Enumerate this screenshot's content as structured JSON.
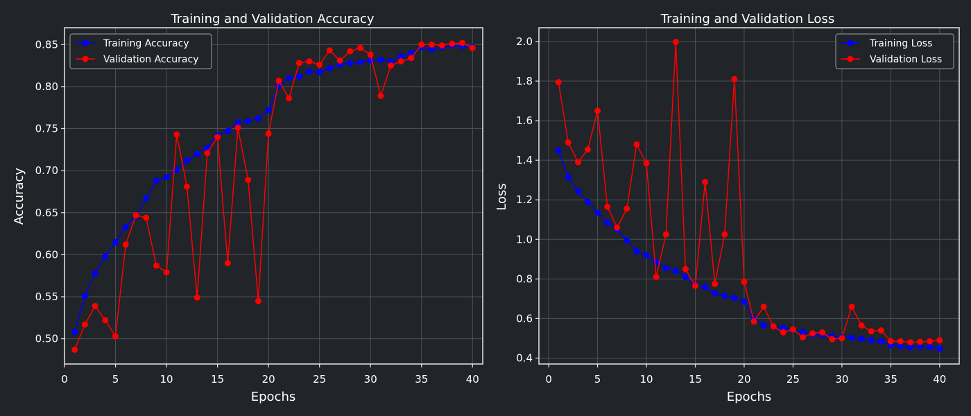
{
  "colors": {
    "background": "#212428",
    "training": "#0000ff",
    "validation": "#ff0000"
  },
  "chart_data": [
    {
      "type": "line",
      "title": "Training and Validation Accuracy",
      "xlabel": "Epochs",
      "ylabel": "Accuracy",
      "xlim": [
        0,
        41
      ],
      "ylim": [
        0.47,
        0.87
      ],
      "xticks": [
        0,
        5,
        10,
        15,
        20,
        25,
        30,
        35,
        40
      ],
      "xtick_labels": [
        "0",
        "5",
        "10",
        "15",
        "20",
        "25",
        "30",
        "35",
        "40"
      ],
      "yticks": [
        0.5,
        0.55,
        0.6,
        0.65,
        0.7,
        0.75,
        0.8,
        0.85
      ],
      "ytick_labels": [
        "0.50",
        "0.55",
        "0.60",
        "0.65",
        "0.70",
        "0.75",
        "0.80",
        "0.85"
      ],
      "grid": true,
      "legend_position": "top-left",
      "x": [
        1,
        2,
        3,
        4,
        5,
        6,
        7,
        8,
        9,
        10,
        11,
        12,
        13,
        14,
        15,
        16,
        17,
        18,
        19,
        20,
        21,
        22,
        23,
        24,
        25,
        26,
        27,
        28,
        29,
        30,
        31,
        32,
        33,
        34,
        35,
        36,
        37,
        38,
        39,
        40
      ],
      "series": [
        {
          "name": "Training Accuracy",
          "color": "#0000ff",
          "values": [
            0.508,
            0.551,
            0.578,
            0.598,
            0.615,
            0.633,
            0.646,
            0.667,
            0.688,
            0.692,
            0.701,
            0.712,
            0.72,
            0.727,
            0.742,
            0.747,
            0.757,
            0.759,
            0.762,
            0.772,
            0.801,
            0.81,
            0.812,
            0.818,
            0.817,
            0.822,
            0.826,
            0.828,
            0.829,
            0.831,
            0.832,
            0.83,
            0.836,
            0.84,
            0.847,
            0.844,
            0.847,
            0.849,
            0.848,
            0.847
          ]
        },
        {
          "name": "Validation Accuracy",
          "color": "#ff0000",
          "values": [
            0.487,
            0.517,
            0.539,
            0.522,
            0.503,
            0.612,
            0.647,
            0.644,
            0.587,
            0.579,
            0.743,
            0.681,
            0.549,
            0.721,
            0.74,
            0.59,
            0.751,
            0.689,
            0.545,
            0.744,
            0.807,
            0.786,
            0.828,
            0.83,
            0.826,
            0.843,
            0.831,
            0.842,
            0.846,
            0.838,
            0.789,
            0.825,
            0.83,
            0.834,
            0.85,
            0.85,
            0.849,
            0.851,
            0.852,
            0.846
          ]
        }
      ]
    },
    {
      "type": "line",
      "title": "Training and Validation Loss",
      "xlabel": "Epochs",
      "ylabel": "Loss",
      "xlim": [
        -1,
        42
      ],
      "ylim": [
        0.37,
        2.07
      ],
      "xticks": [
        0,
        5,
        10,
        15,
        20,
        25,
        30,
        35,
        40
      ],
      "xtick_labels": [
        "0",
        "5",
        "10",
        "15",
        "20",
        "25",
        "30",
        "35",
        "40"
      ],
      "yticks": [
        0.4,
        0.6,
        0.8,
        1.0,
        1.2,
        1.4,
        1.6,
        1.8,
        2.0
      ],
      "ytick_labels": [
        "0.4",
        "0.6",
        "0.8",
        "1.0",
        "1.2",
        "1.4",
        "1.6",
        "1.8",
        "2.0"
      ],
      "grid": true,
      "legend_position": "top-right",
      "x": [
        1,
        2,
        3,
        4,
        5,
        6,
        7,
        8,
        9,
        10,
        11,
        12,
        13,
        14,
        15,
        16,
        17,
        18,
        19,
        20,
        21,
        22,
        23,
        24,
        25,
        26,
        27,
        28,
        29,
        30,
        31,
        32,
        33,
        34,
        35,
        36,
        37,
        38,
        39,
        40
      ],
      "series": [
        {
          "name": "Training Loss",
          "color": "#0000ff",
          "values": [
            1.45,
            1.315,
            1.243,
            1.19,
            1.135,
            1.085,
            1.051,
            0.995,
            0.94,
            0.92,
            0.885,
            0.855,
            0.84,
            0.81,
            0.768,
            0.758,
            0.728,
            0.715,
            0.705,
            0.685,
            0.6,
            0.565,
            0.56,
            0.553,
            0.545,
            0.532,
            0.52,
            0.518,
            0.51,
            0.505,
            0.503,
            0.498,
            0.49,
            0.485,
            0.465,
            0.46,
            0.455,
            0.458,
            0.456,
            0.448
          ]
        },
        {
          "name": "Validation Loss",
          "color": "#ff0000",
          "values": [
            1.795,
            1.49,
            1.39,
            1.455,
            1.65,
            1.165,
            1.06,
            1.155,
            1.48,
            1.385,
            0.81,
            1.025,
            1.998,
            0.85,
            0.765,
            1.29,
            0.775,
            1.025,
            1.81,
            0.785,
            0.585,
            0.66,
            0.56,
            0.53,
            0.545,
            0.505,
            0.525,
            0.53,
            0.495,
            0.5,
            0.66,
            0.565,
            0.535,
            0.54,
            0.485,
            0.485,
            0.48,
            0.482,
            0.485,
            0.49
          ]
        }
      ]
    }
  ]
}
